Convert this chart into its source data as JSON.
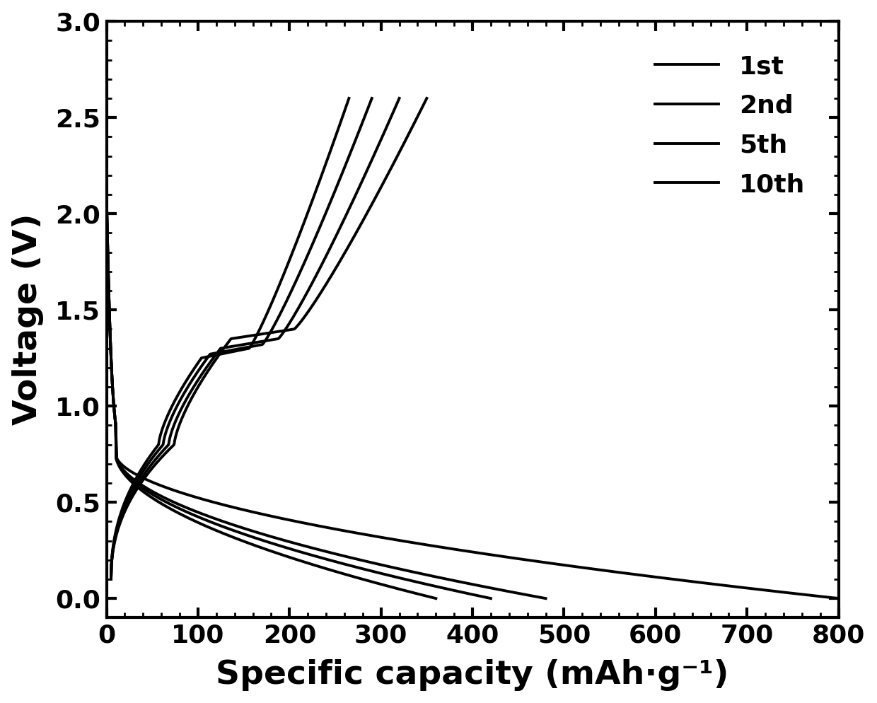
{
  "xlabel": "Specific capacity (mAh·g⁻¹)",
  "ylabel": "Voltage (V)",
  "xlim": [
    0,
    800
  ],
  "ylim": [
    -0.1,
    3.0
  ],
  "xticks": [
    0,
    100,
    200,
    300,
    400,
    500,
    600,
    700,
    800
  ],
  "yticks": [
    0.0,
    0.5,
    1.0,
    1.5,
    2.0,
    2.5,
    3.0
  ],
  "legend_labels": [
    "1st",
    "2nd",
    "5th",
    "10th"
  ],
  "line_color": "#000000",
  "background_color": "#ffffff",
  "linewidth": 2.8,
  "discharge_caps": [
    800,
    480,
    420,
    360
  ],
  "charge_ends": [
    350,
    320,
    290,
    265
  ],
  "charge_starts": [
    5,
    5,
    5,
    5
  ]
}
